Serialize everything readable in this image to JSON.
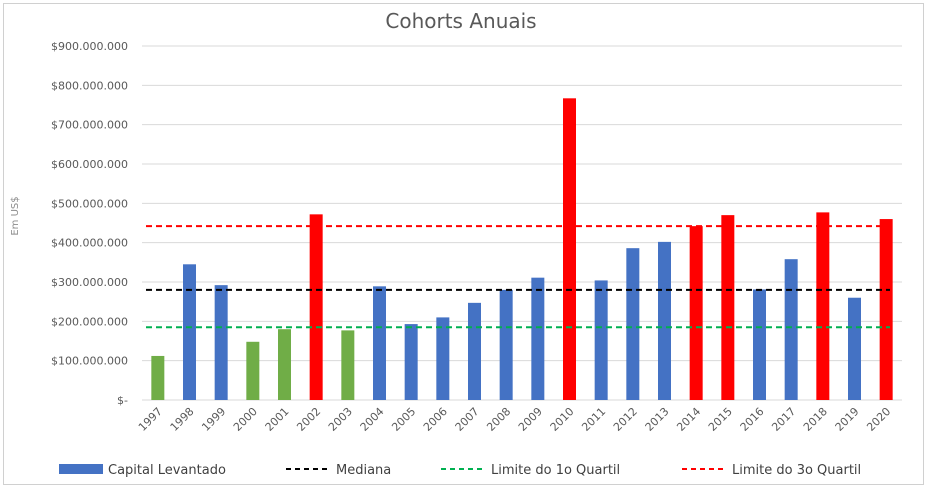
{
  "chart_data": {
    "type": "bar",
    "title": "Cohorts Anuais",
    "ylabel": "Em US$",
    "xlabel": "",
    "ylim": [
      0,
      900000000
    ],
    "grid": true,
    "legend_position": "bottom",
    "yticks": [
      "$-",
      "$100.000.000",
      "$200.000.000",
      "$300.000.000",
      "$400.000.000",
      "$500.000.000",
      "$600.000.000",
      "$700.000.000",
      "$800.000.000",
      "$900.000.000"
    ],
    "ytick_values": [
      0,
      100000000,
      200000000,
      300000000,
      400000000,
      500000000,
      600000000,
      700000000,
      800000000,
      900000000
    ],
    "categories": [
      "1997",
      "1998",
      "1999",
      "2000",
      "2001",
      "2002",
      "2003",
      "2004",
      "2005",
      "2006",
      "2007",
      "2008",
      "2009",
      "2010",
      "2011",
      "2012",
      "2013",
      "2014",
      "2015",
      "2016",
      "2017",
      "2018",
      "2019",
      "2020"
    ],
    "series": [
      {
        "name": "Capital Levantado",
        "values": [
          112000000,
          345000000,
          292000000,
          148000000,
          180000000,
          472000000,
          177000000,
          289000000,
          193000000,
          210000000,
          247000000,
          280000000,
          311000000,
          767000000,
          304000000,
          386000000,
          402000000,
          442000000,
          470000000,
          281000000,
          358000000,
          477000000,
          260000000,
          460000000
        ],
        "bar_colors": [
          "#70ad47",
          "#4472c4",
          "#4472c4",
          "#70ad47",
          "#70ad47",
          "#ff0000",
          "#70ad47",
          "#4472c4",
          "#4472c4",
          "#4472c4",
          "#4472c4",
          "#4472c4",
          "#4472c4",
          "#ff0000",
          "#4472c4",
          "#4472c4",
          "#4472c4",
          "#ff0000",
          "#ff0000",
          "#4472c4",
          "#4472c4",
          "#ff0000",
          "#4472c4",
          "#ff0000"
        ],
        "color": "#4472c4"
      }
    ],
    "reference_lines": [
      {
        "name": "Mediana",
        "value": 280000000,
        "color": "#000000",
        "style": "dashed"
      },
      {
        "name": "Limite do 1o Quartil",
        "value": 185000000,
        "color": "#00b050",
        "style": "dashed"
      },
      {
        "name": "Limite do 3o Quartil",
        "value": 442000000,
        "color": "#ff0000",
        "style": "dashed"
      }
    ]
  }
}
